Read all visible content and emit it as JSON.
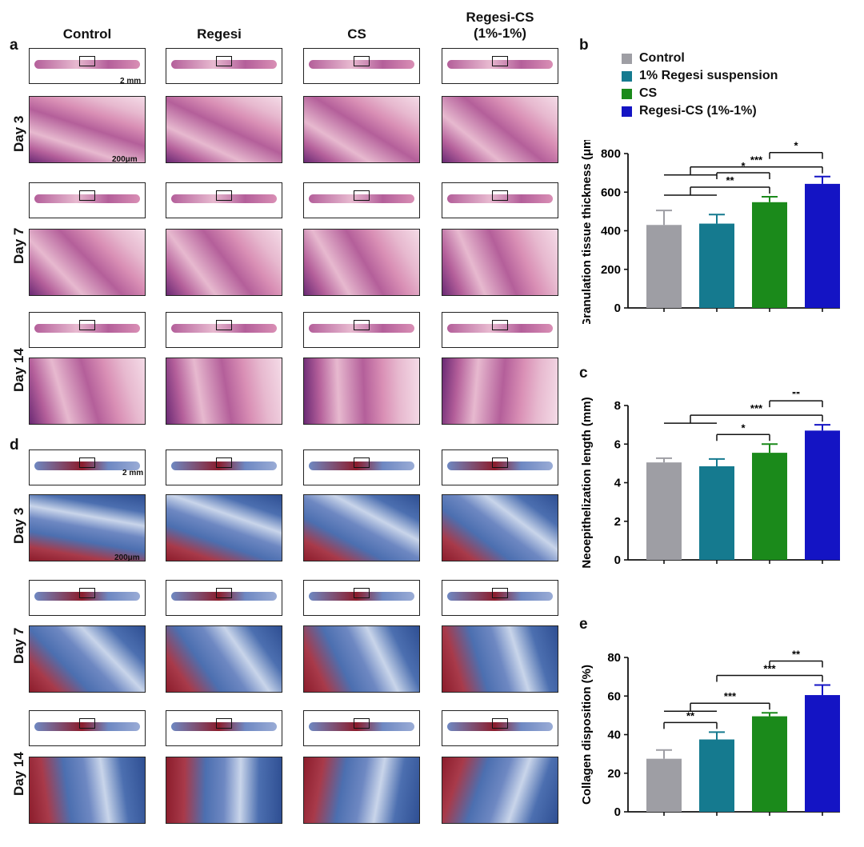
{
  "panels": {
    "a": "a",
    "b": "b",
    "c": "c",
    "d": "d",
    "e": "e"
  },
  "columns": [
    "Control",
    "Regesi",
    "CS",
    "Regesi-CS\n(1%-1%)"
  ],
  "rows": [
    "Day 3",
    "Day 7",
    "Day 14"
  ],
  "scale": {
    "thumb": "2 mm",
    "zoom": "200μm"
  },
  "colors": {
    "he_bg": "#e7b9cf",
    "he_dark": "#6a2a74",
    "he_mid": "#b45f9a",
    "mt_bg": "#4c6fb0",
    "mt_red": "#8c1d2c",
    "mt_light": "#c9d5ea",
    "bars": [
      "#9e9ea4",
      "#157a8f",
      "#1b8a1b",
      "#1414c4"
    ]
  },
  "legend": [
    {
      "label": "Control",
      "color": "#9e9ea4"
    },
    {
      "label": "1% Regesi suspension",
      "color": "#157a8f"
    },
    {
      "label": "CS",
      "color": "#1b8a1b"
    },
    {
      "label": "Regesi-CS (1%-1%)",
      "color": "#1414c4"
    }
  ],
  "chart_data": [
    {
      "id": "b",
      "type": "bar",
      "ylabel": "Granulation tissue thickness (μm)",
      "categories": [
        "Control",
        "1% Regesi suspension",
        "CS",
        "Regesi-CS (1%-1%)"
      ],
      "values": [
        430,
        437,
        548,
        643
      ],
      "errors": [
        75,
        47,
        28,
        38
      ],
      "ylim": [
        0,
        800
      ],
      "yticks": [
        0,
        200,
        400,
        600,
        800
      ],
      "significance": [
        {
          "from": [
            0,
            1
          ],
          "to": 3,
          "label": "***"
        },
        {
          "from": [
            0,
            1
          ],
          "to": 2,
          "label": "**"
        },
        {
          "from": [
            1
          ],
          "to": 2,
          "label": "*"
        },
        {
          "from": [
            2
          ],
          "to": 3,
          "label": "*"
        }
      ]
    },
    {
      "id": "c",
      "type": "bar",
      "ylabel": "Neoepithelization length (mm)",
      "categories": [
        "Control",
        "1% Regesi suspension",
        "CS",
        "Regesi-CS (1%-1%)"
      ],
      "values": [
        5.05,
        4.85,
        5.55,
        6.7
      ],
      "errors": [
        0.22,
        0.38,
        0.45,
        0.3
      ],
      "ylim": [
        0,
        8
      ],
      "yticks": [
        0,
        2,
        4,
        6,
        8
      ],
      "significance": [
        {
          "from": [
            0,
            1
          ],
          "to": 3,
          "label": "***"
        },
        {
          "from": [
            1
          ],
          "to": 2,
          "label": "*"
        },
        {
          "from": [
            2
          ],
          "to": 3,
          "label": "**"
        }
      ]
    },
    {
      "id": "e",
      "type": "bar",
      "ylabel": "Collagen disposition (%)",
      "categories": [
        "Control",
        "1% Regesi suspension",
        "CS",
        "Regesi-CS (1%-1%)"
      ],
      "values": [
        27.5,
        37.5,
        49.5,
        60.5
      ],
      "errors": [
        4.5,
        3.8,
        1.8,
        5.2
      ],
      "ylim": [
        0,
        80
      ],
      "yticks": [
        0,
        20,
        40,
        60,
        80
      ],
      "significance": [
        {
          "from": [
            1
          ],
          "to": 3,
          "label": "***"
        },
        {
          "from": [
            0,
            1
          ],
          "to": 2,
          "label": "***"
        },
        {
          "from": [
            0
          ],
          "to": 1,
          "label": "**"
        },
        {
          "from": [
            2
          ],
          "to": 3,
          "label": "**"
        }
      ]
    }
  ]
}
